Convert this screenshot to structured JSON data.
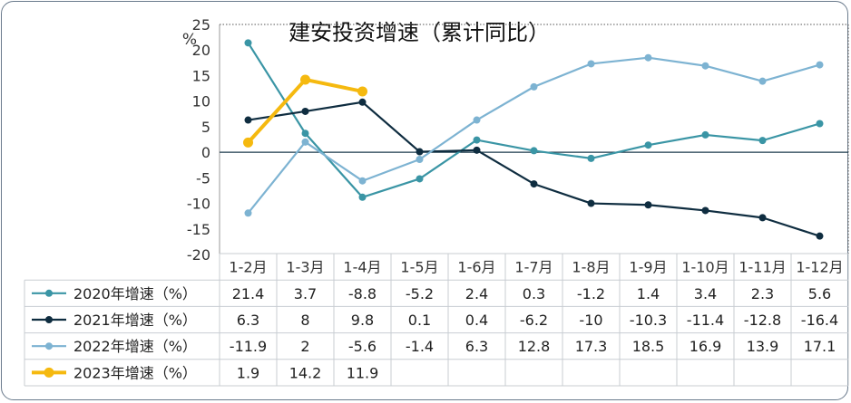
{
  "chart_data": {
    "type": "line",
    "title": "建安投资增速（累计同比）",
    "ylabel": "%",
    "xlabel": "",
    "ylim": [
      -20,
      25
    ],
    "yticks": [
      25,
      20,
      15,
      10,
      5,
      0,
      -5,
      -10,
      -15,
      -20
    ],
    "grid": false,
    "legend": "table",
    "categories": [
      "1-2月",
      "1-3月",
      "1-4月",
      "1-5月",
      "1-6月",
      "1-7月",
      "1-8月",
      "1-9月",
      "1-10月",
      "1-11月",
      "1-12月"
    ],
    "series": [
      {
        "name": "2020年增速（%）",
        "color": "#3a95a5",
        "values": [
          21.4,
          3.7,
          -8.8,
          -5.2,
          2.4,
          0.3,
          -1.2,
          1.4,
          3.4,
          2.3,
          5.6
        ],
        "labels": [
          "21.4",
          "3.7",
          "-8.8",
          "-5.2",
          "2.4",
          "0.3",
          "-1.2",
          "1.4",
          "3.4",
          "2.3",
          "5.6"
        ]
      },
      {
        "name": "2021年增速（%）",
        "color": "#0f2d40",
        "values": [
          6.3,
          8,
          9.8,
          0.1,
          0.4,
          -6.2,
          -10,
          -10.3,
          -11.4,
          -12.8,
          -16.4
        ],
        "labels": [
          "6.3",
          "8",
          "9.8",
          "0.1",
          "0.4",
          "-6.2",
          "-10",
          "-10.3",
          "-11.4",
          "-12.8",
          "-16.4"
        ]
      },
      {
        "name": "2022年增速（%）",
        "color": "#7db3d2",
        "values": [
          -11.9,
          2,
          -5.6,
          -1.4,
          6.3,
          12.8,
          17.3,
          18.5,
          16.9,
          13.9,
          17.1
        ],
        "labels": [
          "-11.9",
          "2",
          "-5.6",
          "-1.4",
          "6.3",
          "12.8",
          "17.3",
          "18.5",
          "16.9",
          "13.9",
          "17.1"
        ]
      },
      {
        "name": "2023年增速（%）",
        "color": "#f5b90f",
        "values": [
          1.9,
          14.2,
          11.9,
          null,
          null,
          null,
          null,
          null,
          null,
          null,
          null
        ],
        "labels": [
          "1.9",
          "14.2",
          "11.9",
          "",
          "",
          "",
          "",
          "",
          "",
          "",
          ""
        ]
      }
    ]
  }
}
